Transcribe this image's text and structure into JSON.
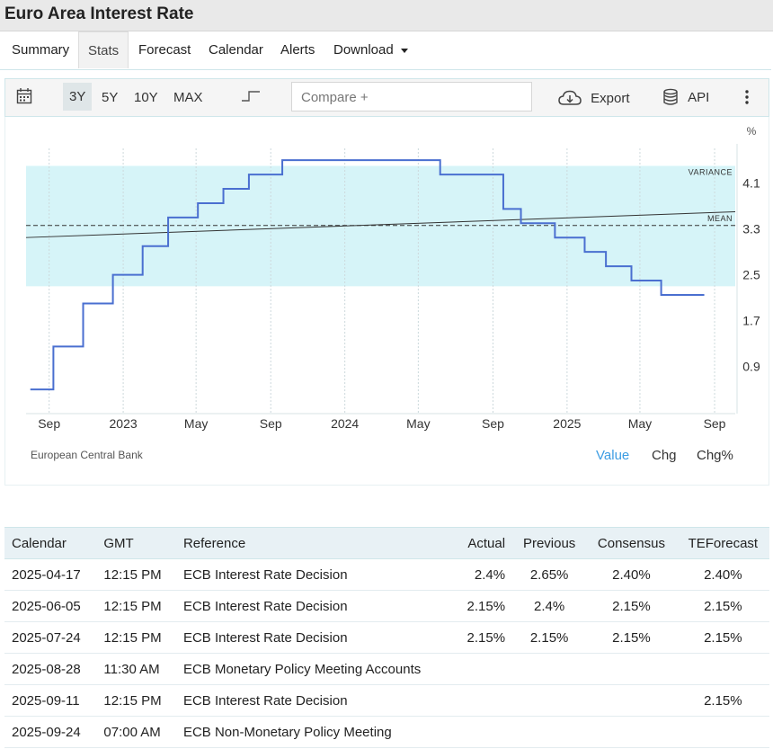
{
  "title": "Euro Area Interest Rate",
  "tabs": {
    "summary": "Summary",
    "stats": "Stats",
    "forecast": "Forecast",
    "calendar": "Calendar",
    "alerts": "Alerts",
    "download": "Download"
  },
  "toolbar": {
    "r3y": "3Y",
    "r5y": "5Y",
    "r10y": "10Y",
    "rmax": "MAX",
    "compare_placeholder": "Compare +",
    "export": "Export",
    "api": "API"
  },
  "chart_data": {
    "type": "line",
    "step": true,
    "unit": "%",
    "x_ticks": [
      "Sep",
      "2023",
      "May",
      "Sep",
      "2024",
      "May",
      "Sep",
      "2025",
      "May",
      "Sep"
    ],
    "y_ticks": [
      0.9,
      1.7,
      2.5,
      3.3,
      4.1
    ],
    "ylim": [
      0.5,
      4.9
    ],
    "series": [
      {
        "values": [
          {
            "x": "2022-08-01",
            "y": 0.5
          },
          {
            "x": "2022-09-08",
            "y": 1.25
          },
          {
            "x": "2022-10-27",
            "y": 2.0
          },
          {
            "x": "2022-12-15",
            "y": 2.5
          },
          {
            "x": "2023-02-02",
            "y": 3.0
          },
          {
            "x": "2023-03-16",
            "y": 3.5
          },
          {
            "x": "2023-05-04",
            "y": 3.75
          },
          {
            "x": "2023-06-15",
            "y": 4.0
          },
          {
            "x": "2023-07-27",
            "y": 4.25
          },
          {
            "x": "2023-09-20",
            "y": 4.5
          },
          {
            "x": "2024-06-06",
            "y": 4.25
          },
          {
            "x": "2024-09-18",
            "y": 3.65
          },
          {
            "x": "2024-10-17",
            "y": 3.4
          },
          {
            "x": "2024-12-12",
            "y": 3.15
          },
          {
            "x": "2025-01-30",
            "y": 2.9
          },
          {
            "x": "2025-03-06",
            "y": 2.65
          },
          {
            "x": "2025-04-17",
            "y": 2.4
          },
          {
            "x": "2025-06-05",
            "y": 2.15
          },
          {
            "x": "2025-08-15",
            "y": 2.15
          }
        ]
      }
    ],
    "mean": 3.36,
    "variance_band": [
      2.3,
      4.4
    ],
    "trend": [
      3.15,
      3.6
    ],
    "labels": {
      "variance": "VARIANCE",
      "mean": "MEAN"
    }
  },
  "source": "European Central Bank",
  "value_buttons": {
    "value": "Value",
    "chg": "Chg",
    "chgpct": "Chg%"
  },
  "colors": {
    "line": "#4a6fd0",
    "band": "#c8f0f6",
    "active": "#3d9de3"
  },
  "calendar": {
    "headers": [
      "Calendar",
      "GMT",
      "Reference",
      "Actual",
      "Previous",
      "Consensus",
      "TEForecast"
    ],
    "rows": [
      [
        "2025-04-17",
        "12:15 PM",
        "ECB Interest Rate Decision",
        "2.4%",
        "2.65%",
        "2.40%",
        "2.40%"
      ],
      [
        "2025-06-05",
        "12:15 PM",
        "ECB Interest Rate Decision",
        "2.15%",
        "2.4%",
        "2.15%",
        "2.15%"
      ],
      [
        "2025-07-24",
        "12:15 PM",
        "ECB Interest Rate Decision",
        "2.15%",
        "2.15%",
        "2.15%",
        "2.15%"
      ],
      [
        "2025-08-28",
        "11:30 AM",
        "ECB Monetary Policy Meeting Accounts",
        "",
        "",
        "",
        ""
      ],
      [
        "2025-09-11",
        "12:15 PM",
        "ECB Interest Rate Decision",
        "",
        "",
        "",
        "2.15%"
      ],
      [
        "2025-09-24",
        "07:00 AM",
        "ECB Non-Monetary Policy Meeting",
        "",
        "",
        "",
        ""
      ]
    ]
  }
}
